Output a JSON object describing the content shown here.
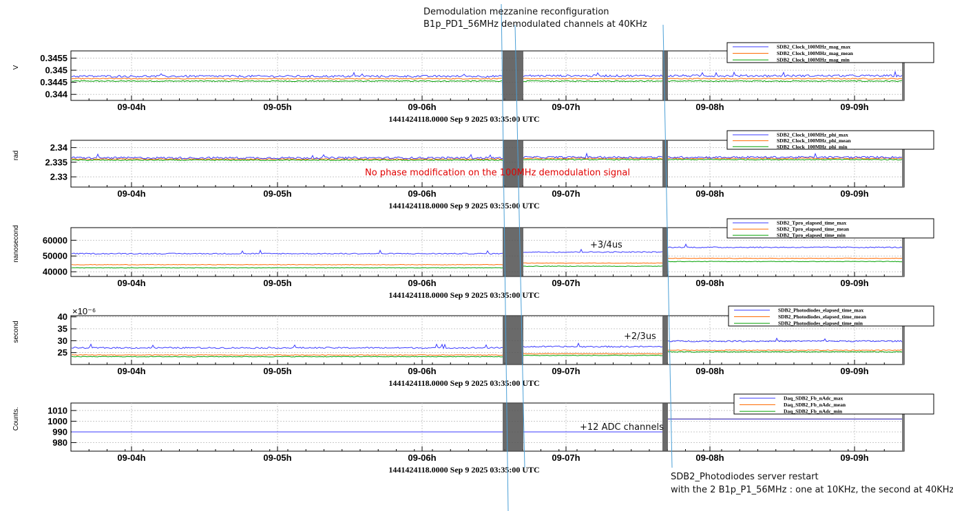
{
  "annotations": {
    "top_line1": "Demodulation mezzanine reconfiguration",
    "top_line2": "B1p_PD1_56MHz demodulated channels at 40KHz",
    "phase_note": "No phase modification on the 100MHz demodulation signal",
    "tpro_note": "+3/4us",
    "photo_note": "+2/3us",
    "adc_note": "+12 ADC channels",
    "bottom_line1": "SDB2_Photodiodes server restart",
    "bottom_line2": "with the 2 B1p_P1_56MHz : one at 10KHz, the second at 40KHz"
  },
  "colors": {
    "max": "#3a3aff",
    "mean": "#ff6a00",
    "min": "#00a000",
    "annotation_line": "#4a9fd6",
    "band": "#505050",
    "grid": "#c8c8c8"
  },
  "chart_data": [
    {
      "type": "line",
      "ylabel": "V",
      "xlabel": "1441424118.0000 Sep 9 2025 03:35:00 UTC",
      "ylim": [
        0.34375,
        0.3458
      ],
      "yticks": [
        "0.344",
        "0.3445",
        "0.345",
        "0.3455"
      ],
      "yticks_values": [
        0.344,
        0.3445,
        0.345,
        0.3455
      ],
      "xticks": [
        "09-04h",
        "09-05h",
        "09-06h",
        "09-07h",
        "09-08h",
        "09-09h"
      ],
      "legend": [
        "SDB2_Clock_100MHz_mag_max",
        "SDB2_Clock_100MHz_mag_mean",
        "SDB2_Clock_100MHz_mag_min"
      ],
      "series_levels": {
        "max": [
          0.34475,
          0.34477
        ],
        "mean": [
          0.34465,
          0.34465
        ],
        "min": [
          0.34455,
          0.34455
        ]
      }
    },
    {
      "type": "line",
      "ylabel": "rad",
      "xlabel": "1441424118.0000 Sep 9 2025 03:35:00 UTC",
      "ylim": [
        2.3265,
        2.3425
      ],
      "yticks": [
        "2.33",
        "2.335",
        "2.34"
      ],
      "yticks_values": [
        2.33,
        2.335,
        2.34
      ],
      "xticks": [
        "09-04h",
        "09-05h",
        "09-06h",
        "09-07h",
        "09-08h",
        "09-09h"
      ],
      "legend": [
        "SDB2_Clock_100MHz_phi_max",
        "SDB2_Clock_100MHz_phi_mean",
        "SDB2_Clock_100MHz_phi_min"
      ],
      "series_levels": {
        "max": [
          2.3365,
          2.3367
        ],
        "mean": [
          2.3361,
          2.3363
        ],
        "min": [
          2.3357,
          2.3359
        ]
      }
    },
    {
      "type": "line",
      "ylabel": "nanosecond",
      "xlabel": "1441424118.0000 Sep 9 2025 03:35:00 UTC",
      "ylim": [
        37000,
        68000
      ],
      "yticks": [
        "40000",
        "50000",
        "60000"
      ],
      "yticks_values": [
        40000,
        50000,
        60000
      ],
      "xticks": [
        "09-04h",
        "09-05h",
        "09-06h",
        "09-07h",
        "09-08h",
        "09-09h"
      ],
      "legend": [
        "SDB2_Tpro_elapsed_time_max",
        "SDB2_Tpro_elapsed_time_mean",
        "SDB2_Tpro_elapsed_time_min"
      ],
      "series_levels": {
        "max": [
          51500,
          52500,
          55500
        ],
        "mean": [
          44500,
          45500,
          48500
        ],
        "min": [
          42500,
          43500,
          46500
        ]
      }
    },
    {
      "type": "line",
      "ylabel": "second",
      "xlabel": "1441424118.0000 Sep 9 2025 03:35:00 UTC",
      "scale_label": "×10⁻⁶",
      "ylim": [
        20,
        40.5
      ],
      "yticks": [
        "25",
        "30",
        "35",
        "40"
      ],
      "yticks_values": [
        25,
        30,
        35,
        40
      ],
      "xticks": [
        "09-04h",
        "09-05h",
        "09-06h",
        "09-07h",
        "09-08h",
        "09-09h"
      ],
      "legend": [
        "SDB2_Photodiodes_elapsed_time_max",
        "SDB2_Photodiodes_elapsed_time_mean",
        "SDB2_Photodiodes_elapsed_time_min"
      ],
      "series_levels": {
        "max": [
          27,
          27.5,
          29.8
        ],
        "mean": [
          24,
          24.5,
          26
        ],
        "min": [
          23.3,
          23.8,
          25.3
        ]
      }
    },
    {
      "type": "line",
      "ylabel": "Counts.",
      "xlabel": "1441424118.0000 Sep 9 2025 03:35:00 UTC",
      "ylim": [
        972,
        1017
      ],
      "yticks": [
        "980",
        "990",
        "1000",
        "1010"
      ],
      "yticks_values": [
        980,
        990,
        1000,
        1010
      ],
      "xticks": [
        "09-04h",
        "09-05h",
        "09-06h",
        "09-07h",
        "09-08h",
        "09-09h"
      ],
      "legend": [
        "Daq_SDB2_Fb_nAdc_max",
        "Daq_SDB2_Fb_nAdc_mean",
        "Daq_SDB2_Fb_nAdc_min"
      ],
      "series_levels": {
        "max": [
          990,
          990,
          1002
        ],
        "mean": [
          990,
          990,
          1002
        ],
        "min": [
          990,
          990,
          1002
        ]
      }
    }
  ]
}
